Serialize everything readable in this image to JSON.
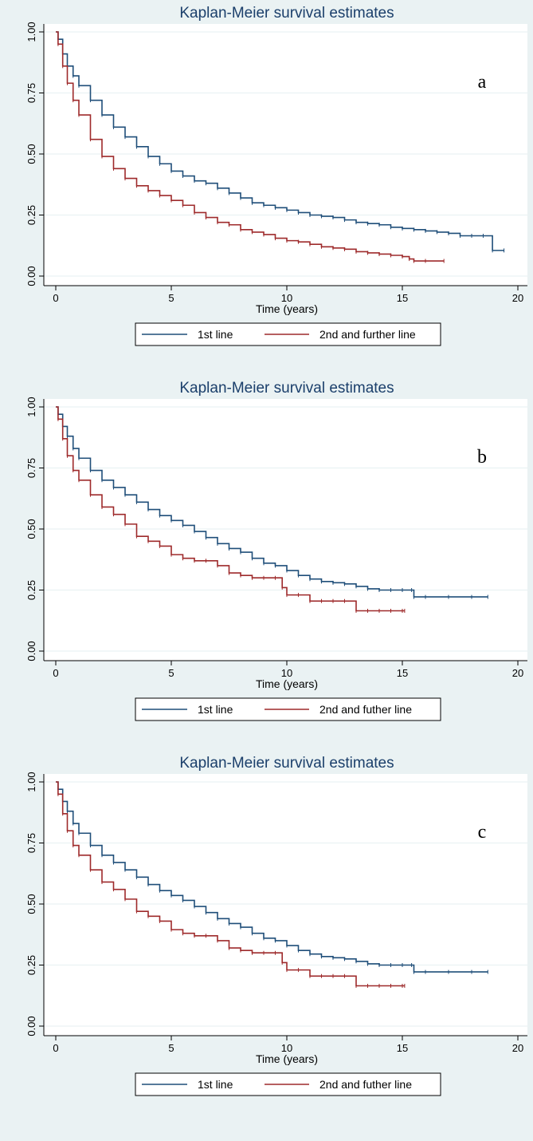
{
  "chart_data": [
    {
      "type": "line",
      "title": "Kaplan-Meier survival estimates",
      "panel_label": "a",
      "xlabel": "Time (years)",
      "ylabel": "",
      "xlim": [
        0,
        20
      ],
      "ylim": [
        0,
        1
      ],
      "xticks": [
        "0",
        "5",
        "10",
        "15",
        "20"
      ],
      "yticks": [
        "0.00",
        "0.25",
        "0.50",
        "0.75",
        "1.00"
      ],
      "grid": true,
      "legend_position": "bottom",
      "series": [
        {
          "name": "1st line",
          "color": "#1f4e79",
          "x": [
            0,
            0.1,
            0.3,
            0.5,
            0.75,
            1,
            1.5,
            2,
            2.5,
            3,
            3.5,
            4,
            4.5,
            5,
            5.5,
            6,
            6.5,
            7,
            7.5,
            8,
            8.5,
            9,
            9.5,
            10,
            10.5,
            11,
            11.5,
            12,
            12.5,
            13,
            13.5,
            14,
            14.5,
            15,
            15.5,
            16,
            16.5,
            17,
            17.5,
            18,
            18.5,
            18.9,
            19.4
          ],
          "y": [
            1.0,
            0.97,
            0.91,
            0.86,
            0.82,
            0.78,
            0.72,
            0.66,
            0.61,
            0.57,
            0.53,
            0.49,
            0.46,
            0.43,
            0.41,
            0.39,
            0.38,
            0.36,
            0.34,
            0.32,
            0.3,
            0.29,
            0.28,
            0.27,
            0.26,
            0.25,
            0.245,
            0.24,
            0.23,
            0.22,
            0.215,
            0.21,
            0.2,
            0.195,
            0.19,
            0.185,
            0.18,
            0.175,
            0.165,
            0.165,
            0.165,
            0.105,
            0.105
          ]
        },
        {
          "name": "2nd and further line",
          "color": "#9e2a2b",
          "x": [
            0,
            0.1,
            0.3,
            0.5,
            0.75,
            1,
            1.5,
            2,
            2.5,
            3,
            3.5,
            4,
            4.5,
            5,
            5.5,
            6,
            6.5,
            7,
            7.5,
            8,
            8.5,
            9,
            9.5,
            10,
            10.5,
            11,
            11.5,
            12,
            12.5,
            13,
            13.5,
            14,
            14.5,
            15,
            15.3,
            15.5,
            16,
            16.8
          ],
          "y": [
            1.0,
            0.95,
            0.86,
            0.79,
            0.72,
            0.66,
            0.56,
            0.49,
            0.44,
            0.4,
            0.37,
            0.35,
            0.33,
            0.31,
            0.29,
            0.26,
            0.24,
            0.22,
            0.21,
            0.19,
            0.18,
            0.17,
            0.155,
            0.145,
            0.14,
            0.13,
            0.12,
            0.115,
            0.11,
            0.1,
            0.095,
            0.09,
            0.085,
            0.08,
            0.07,
            0.062,
            0.062,
            0.062
          ]
        }
      ]
    },
    {
      "type": "line",
      "title": "Kaplan-Meier survival estimates",
      "panel_label": "b",
      "xlabel": "Time (years)",
      "ylabel": "",
      "xlim": [
        0,
        20
      ],
      "ylim": [
        0,
        1
      ],
      "xticks": [
        "0",
        "5",
        "10",
        "15",
        "20"
      ],
      "yticks": [
        "0.00",
        "0.25",
        "0.50",
        "0.75",
        "1.00"
      ],
      "grid": true,
      "legend_position": "bottom",
      "series": [
        {
          "name": "1st line",
          "color": "#1f4e79",
          "x": [
            0,
            0.1,
            0.3,
            0.5,
            0.75,
            1,
            1.5,
            2,
            2.5,
            3,
            3.5,
            4,
            4.5,
            5,
            5.5,
            6,
            6.5,
            7,
            7.5,
            8,
            8.5,
            9,
            9.5,
            10,
            10.5,
            11,
            11.5,
            12,
            12.5,
            13,
            13.5,
            14,
            14.5,
            15,
            15.4,
            15.5,
            16,
            17,
            18,
            18.7
          ],
          "y": [
            1.0,
            0.97,
            0.92,
            0.88,
            0.83,
            0.79,
            0.74,
            0.7,
            0.67,
            0.64,
            0.61,
            0.58,
            0.555,
            0.535,
            0.515,
            0.49,
            0.465,
            0.44,
            0.42,
            0.405,
            0.38,
            0.36,
            0.35,
            0.33,
            0.31,
            0.295,
            0.285,
            0.28,
            0.275,
            0.265,
            0.255,
            0.25,
            0.25,
            0.25,
            0.25,
            0.222,
            0.222,
            0.222,
            0.222,
            0.222
          ]
        },
        {
          "name": "2nd and futher line",
          "color": "#9e2a2b",
          "x": [
            0,
            0.1,
            0.3,
            0.5,
            0.75,
            1,
            1.5,
            2,
            2.5,
            3,
            3.5,
            4,
            4.5,
            5,
            5.5,
            6,
            6.5,
            7,
            7.5,
            8,
            8.5,
            9,
            9.5,
            9.8,
            10,
            10.5,
            11,
            11.5,
            12,
            12.5,
            13,
            13.5,
            14,
            14.5,
            15,
            15.1
          ],
          "y": [
            1.0,
            0.95,
            0.87,
            0.8,
            0.74,
            0.7,
            0.64,
            0.59,
            0.56,
            0.52,
            0.47,
            0.45,
            0.43,
            0.395,
            0.38,
            0.37,
            0.37,
            0.35,
            0.32,
            0.31,
            0.3,
            0.3,
            0.3,
            0.26,
            0.23,
            0.23,
            0.205,
            0.205,
            0.205,
            0.205,
            0.165,
            0.165,
            0.165,
            0.165,
            0.165,
            0.165
          ]
        }
      ]
    },
    {
      "type": "line",
      "title": "Kaplan-Meier survival estimates",
      "panel_label": "c",
      "xlabel": "Time (years)",
      "ylabel": "",
      "xlim": [
        0,
        20
      ],
      "ylim": [
        0,
        1
      ],
      "xticks": [
        "0",
        "5",
        "10",
        "15",
        "20"
      ],
      "yticks": [
        "0.00",
        "0.25",
        "0.50",
        "0.75",
        "1.00"
      ],
      "grid": true,
      "legend_position": "bottom",
      "series": [
        {
          "name": "1st line",
          "color": "#1f4e79",
          "x": [
            0,
            0.1,
            0.3,
            0.5,
            0.75,
            1,
            1.5,
            2,
            2.5,
            3,
            3.5,
            4,
            4.5,
            5,
            5.5,
            6,
            6.5,
            7,
            7.5,
            8,
            8.5,
            9,
            9.5,
            10,
            10.5,
            11,
            11.5,
            12,
            12.5,
            13,
            13.5,
            14,
            14.5,
            15,
            15.4,
            15.5,
            16,
            17,
            18,
            18.7
          ],
          "y": [
            1.0,
            0.97,
            0.92,
            0.88,
            0.83,
            0.79,
            0.74,
            0.7,
            0.67,
            0.64,
            0.61,
            0.58,
            0.555,
            0.535,
            0.515,
            0.49,
            0.465,
            0.44,
            0.42,
            0.405,
            0.38,
            0.36,
            0.35,
            0.33,
            0.31,
            0.295,
            0.285,
            0.28,
            0.275,
            0.265,
            0.255,
            0.25,
            0.25,
            0.25,
            0.25,
            0.222,
            0.222,
            0.222,
            0.222,
            0.222
          ]
        },
        {
          "name": "2nd and futher line",
          "color": "#9e2a2b",
          "x": [
            0,
            0.1,
            0.3,
            0.5,
            0.75,
            1,
            1.5,
            2,
            2.5,
            3,
            3.5,
            4,
            4.5,
            5,
            5.5,
            6,
            6.5,
            7,
            7.5,
            8,
            8.5,
            9,
            9.5,
            9.8,
            10,
            10.5,
            11,
            11.5,
            12,
            12.5,
            13,
            13.5,
            14,
            14.5,
            15,
            15.1
          ],
          "y": [
            1.0,
            0.95,
            0.87,
            0.8,
            0.74,
            0.7,
            0.64,
            0.59,
            0.56,
            0.52,
            0.47,
            0.45,
            0.43,
            0.395,
            0.38,
            0.37,
            0.37,
            0.35,
            0.32,
            0.31,
            0.3,
            0.3,
            0.3,
            0.26,
            0.23,
            0.23,
            0.205,
            0.205,
            0.205,
            0.205,
            0.165,
            0.165,
            0.165,
            0.165,
            0.165,
            0.165
          ]
        }
      ]
    }
  ]
}
